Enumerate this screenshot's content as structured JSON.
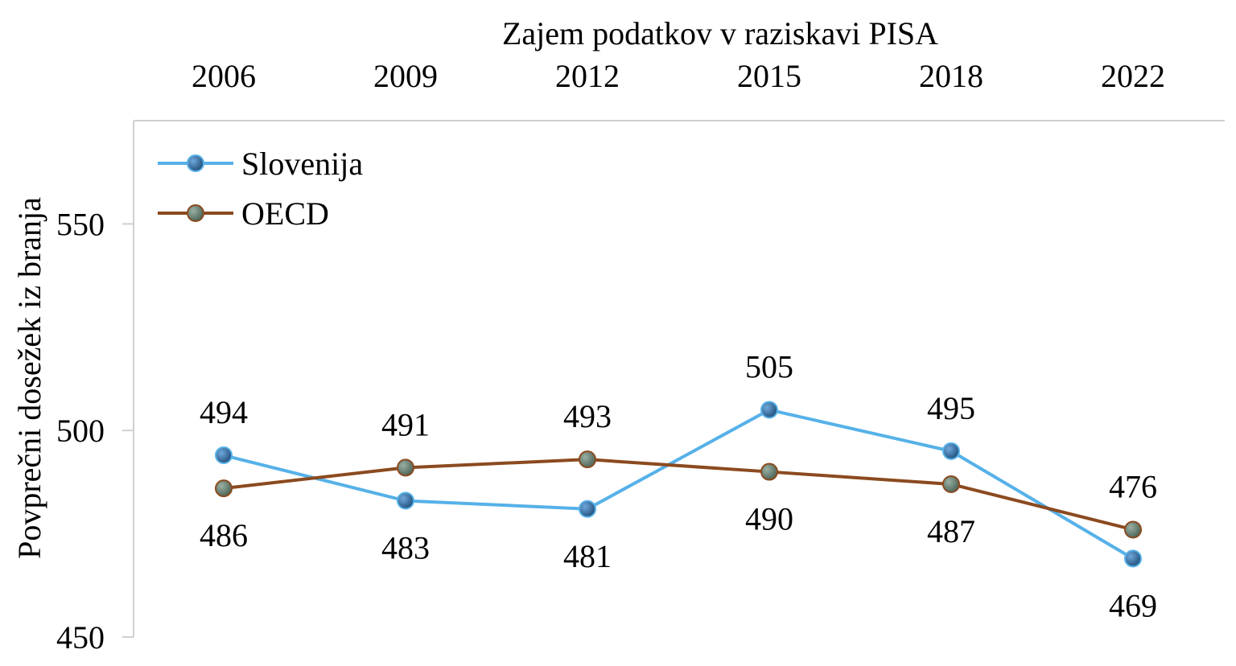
{
  "chart_data": {
    "type": "line",
    "xlabel": "Zajem podatkov v raziskavi PISA",
    "ylabel": "Povprečni dosežek iz branja",
    "categories": [
      "2006",
      "2009",
      "2012",
      "2015",
      "2018",
      "2022"
    ],
    "x_axis_position": "top",
    "ylim": [
      450,
      575
    ],
    "yticks": [
      450,
      500,
      550
    ],
    "grid": false,
    "legend": "top-left",
    "series": [
      {
        "name": "Slovenija",
        "values": [
          494,
          483,
          481,
          505,
          495,
          469
        ],
        "line_color": "#56B1E8",
        "marker_color": "#2E6DA4",
        "label_position": [
          "above",
          "below",
          "below",
          "above",
          "above",
          "below"
        ]
      },
      {
        "name": "OECD",
        "values": [
          486,
          491,
          493,
          490,
          487,
          476
        ],
        "line_color": "#8B4A1F",
        "marker_color": "#5E7A6E",
        "label_position": [
          "below",
          "above",
          "above",
          "below",
          "below",
          "above"
        ]
      }
    ]
  }
}
